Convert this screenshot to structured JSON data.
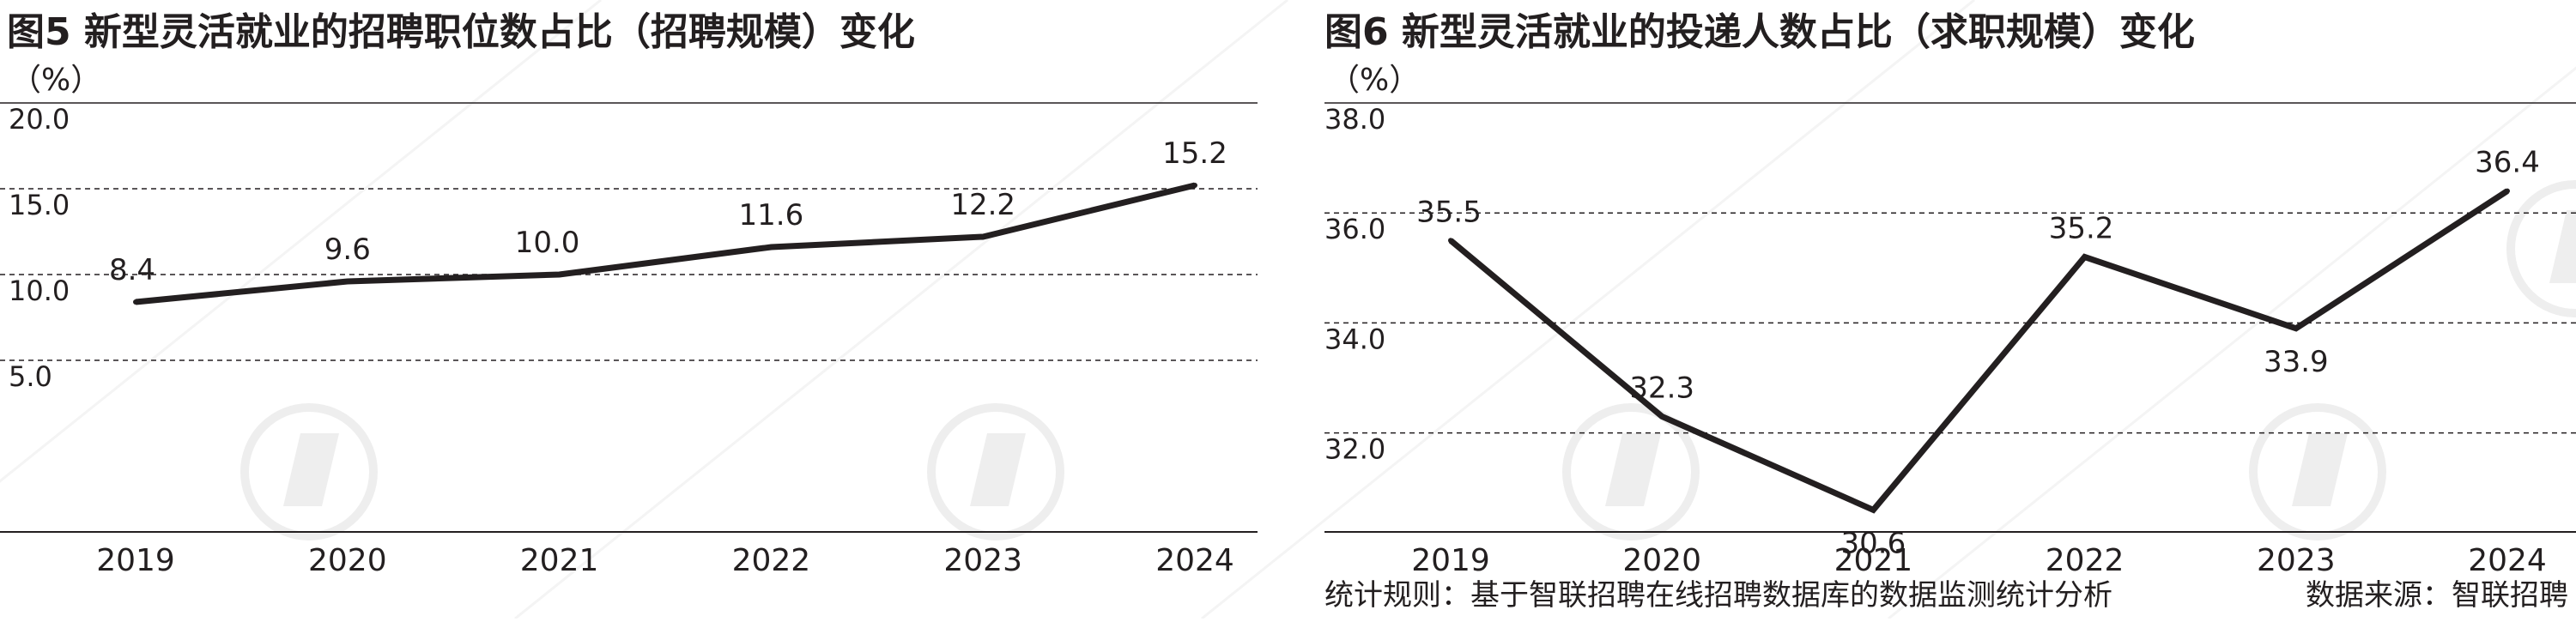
{
  "colors": {
    "line": "#231f20",
    "text": "#231f20",
    "grid": "#231f20",
    "watermark": "#eeeeee"
  },
  "footer": {
    "note": "统计规则：基于智联招聘在线招聘数据库的数据监测统计分析",
    "source": "数据来源：智联招聘"
  },
  "chart_data": [
    {
      "type": "line",
      "title": "图5 新型灵活就业的招聘职位数占比（招聘规模）变化",
      "unit": "（%）",
      "categories": [
        "2019",
        "2020",
        "2021",
        "2022",
        "2023",
        "2024"
      ],
      "values": [
        8.4,
        9.6,
        10.0,
        11.6,
        12.2,
        15.2
      ],
      "data_labels": [
        "8.4",
        "9.6",
        "10.0",
        "11.6",
        "12.2",
        "15.2"
      ],
      "yticks": [
        5.0,
        10.0,
        15.0,
        20.0
      ],
      "ytick_labels": [
        "5.0",
        "10.0",
        "15.0",
        "20.0"
      ],
      "ylim": [
        -5,
        20
      ],
      "grid": "dashed horizontal"
    },
    {
      "type": "line",
      "title": "图6 新型灵活就业的投递人数占比（求职规模）变化",
      "unit": "（%）",
      "categories": [
        "2019",
        "2020",
        "2021",
        "2022",
        "2023",
        "2024"
      ],
      "values": [
        35.5,
        32.3,
        30.6,
        35.2,
        33.9,
        36.4
      ],
      "data_labels": [
        "35.5",
        "32.3",
        "30.6",
        "35.2",
        "33.9",
        "36.4"
      ],
      "yticks": [
        32.0,
        34.0,
        36.0,
        38.0
      ],
      "ytick_labels": [
        "32.0",
        "34.0",
        "36.0",
        "38.0"
      ],
      "ylim": [
        30.2,
        38.0
      ],
      "grid": "dashed horizontal"
    }
  ]
}
